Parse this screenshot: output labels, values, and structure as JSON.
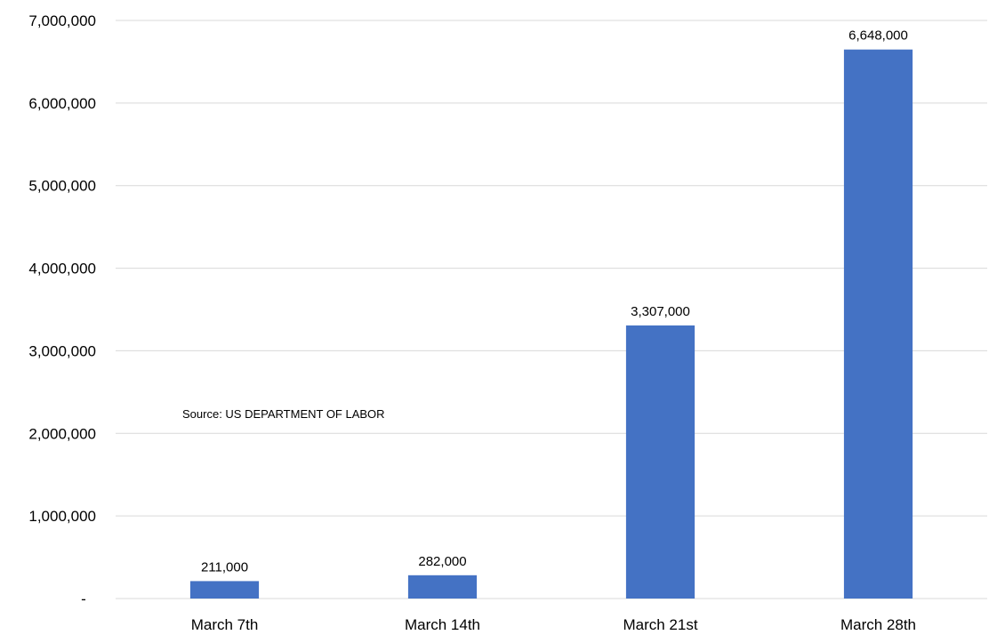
{
  "chart_data": {
    "type": "bar",
    "categories": [
      "March 7th",
      "March 14th",
      "March 21st",
      "March 28th"
    ],
    "values": [
      211000,
      282000,
      3307000,
      6648000
    ],
    "data_labels": [
      "211,000",
      "282,000",
      "3,307,000",
      "6,648,000"
    ],
    "ylim": [
      0,
      7000000
    ],
    "yticks": [
      0,
      1000000,
      2000000,
      3000000,
      4000000,
      5000000,
      6000000,
      7000000
    ],
    "ytick_labels": [
      "-",
      "1,000,000",
      "2,000,000",
      "3,000,000",
      "4,000,000",
      "5,000,000",
      "6,000,000",
      "7,000,000"
    ],
    "grid": true,
    "annotation": "Source:  US DEPARTMENT OF LABOR",
    "colors": {
      "bar": "#4472C4",
      "grid": "#D9D9D9"
    }
  }
}
